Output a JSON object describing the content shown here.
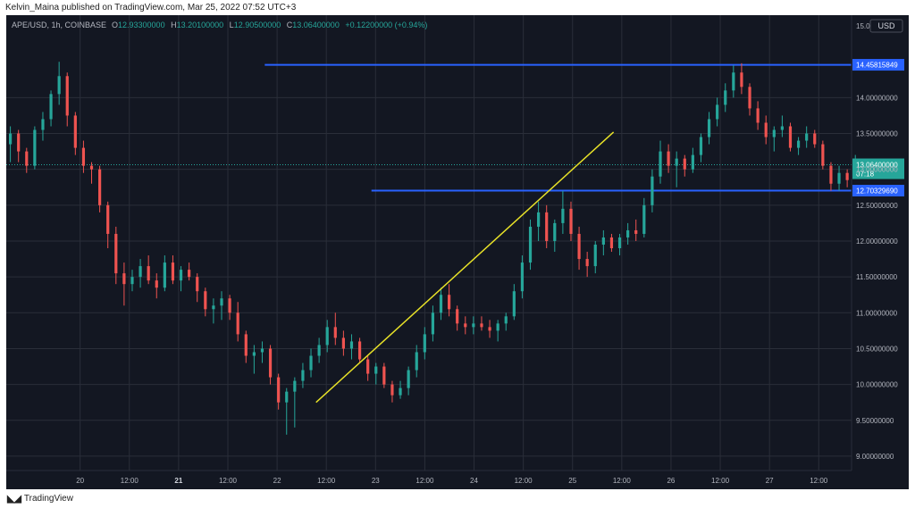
{
  "header": {
    "published_text": "Kelvin_Maina published on TradingView.com, Mar 25, 2022 07:52 UTC+3"
  },
  "footer": {
    "brand": "TradingView"
  },
  "symbol_info": {
    "symbol": "APE/USD, 1h, COINBASE",
    "o_label": "O",
    "o_value": "12.93300000",
    "h_label": "H",
    "h_value": "13.20100000",
    "l_label": "L",
    "l_value": "12.90500000",
    "c_label": "C",
    "c_value": "13.06400000",
    "change": "+0.12200000 (+0.94%)"
  },
  "colors": {
    "background": "#131722",
    "grid": "#2a2e39",
    "up": "#26a69a",
    "down": "#ef5350",
    "level_line": "#2962ff",
    "trend_line": "#e8e228",
    "axis_text": "#b2b5be"
  },
  "chart_data": {
    "type": "candlestick",
    "currency_label": "USD",
    "y_axis_top_label": "15.00000000",
    "ylim": [
      8.8,
      15.15
    ],
    "y_ticks": [
      "9.00000000",
      "9.50000000",
      "10.00000000",
      "10.50000000",
      "11.00000000",
      "11.50000000",
      "12.00000000",
      "12.50000000",
      "13.00000000",
      "13.50000000",
      "14.00000000"
    ],
    "y_tick_values": [
      9.0,
      9.5,
      10.0,
      10.5,
      11.0,
      11.5,
      12.0,
      12.5,
      13.0,
      13.5,
      14.0
    ],
    "x_ticks": [
      "20",
      "12:00",
      "21",
      "12:00",
      "22",
      "12:00",
      "23",
      "12:00",
      "24",
      "12:00",
      "25",
      "12:00",
      "26",
      "12:00",
      "27",
      "12:00"
    ],
    "x_tick_hours": [
      24,
      36,
      48,
      60,
      72,
      84,
      96,
      108,
      120,
      132,
      144,
      156,
      168,
      180,
      192,
      204
    ],
    "x_range_hours": [
      6,
      212
    ],
    "horizontal_levels": [
      {
        "label": "14.45815849",
        "value": 14.45815849,
        "from_hour": 69
      },
      {
        "label": "12.70329690",
        "value": 12.7032969,
        "from_hour": 95
      }
    ],
    "last_price": {
      "label": "13.06400000",
      "countdown": "07:18",
      "value": 13.064
    },
    "trend_line": {
      "from": [
        81.5,
        9.75
      ],
      "to": [
        154,
        13.52
      ]
    },
    "candles_h": [
      [
        13.35,
        13.6,
        13.1,
        13.5
      ],
      [
        13.5,
        13.55,
        13.1,
        13.25
      ],
      [
        13.25,
        13.3,
        12.95,
        13.05
      ],
      [
        13.05,
        13.6,
        13.0,
        13.55
      ],
      [
        13.55,
        13.8,
        13.4,
        13.7
      ],
      [
        13.7,
        14.1,
        13.6,
        14.05
      ],
      [
        14.05,
        14.5,
        13.9,
        14.3
      ],
      [
        14.3,
        14.35,
        13.6,
        13.75
      ],
      [
        13.75,
        13.8,
        13.2,
        13.3
      ],
      [
        13.3,
        13.4,
        12.95,
        13.05
      ],
      [
        13.05,
        13.1,
        12.8,
        13.0
      ],
      [
        13.0,
        13.05,
        12.4,
        12.5
      ],
      [
        12.5,
        12.55,
        11.9,
        12.1
      ],
      [
        12.1,
        12.2,
        11.4,
        11.55
      ],
      [
        11.55,
        11.7,
        11.1,
        11.4
      ],
      [
        11.4,
        11.6,
        11.3,
        11.5
      ],
      [
        11.5,
        11.75,
        11.35,
        11.65
      ],
      [
        11.65,
        11.8,
        11.4,
        11.45
      ],
      [
        11.45,
        11.55,
        11.2,
        11.35
      ],
      [
        11.35,
        11.8,
        11.3,
        11.7
      ],
      [
        11.7,
        11.8,
        11.4,
        11.45
      ],
      [
        11.45,
        11.65,
        11.3,
        11.6
      ],
      [
        11.6,
        11.7,
        11.45,
        11.5
      ],
      [
        11.5,
        11.55,
        11.15,
        11.3
      ],
      [
        11.3,
        11.35,
        10.95,
        11.05
      ],
      [
        11.05,
        11.2,
        10.85,
        11.1
      ],
      [
        11.1,
        11.3,
        10.9,
        11.2
      ],
      [
        11.2,
        11.25,
        10.9,
        11.0
      ],
      [
        11.0,
        11.15,
        10.6,
        10.7
      ],
      [
        10.7,
        10.75,
        10.3,
        10.4
      ],
      [
        10.4,
        10.55,
        10.15,
        10.45
      ],
      [
        10.45,
        10.6,
        10.3,
        10.5
      ],
      [
        10.5,
        10.55,
        10.0,
        10.1
      ],
      [
        10.1,
        10.15,
        9.65,
        9.75
      ],
      [
        9.75,
        9.95,
        9.3,
        9.9
      ],
      [
        9.9,
        10.1,
        9.4,
        10.05
      ],
      [
        10.05,
        10.3,
        9.95,
        10.2
      ],
      [
        10.2,
        10.5,
        10.1,
        10.4
      ],
      [
        10.4,
        10.65,
        10.3,
        10.55
      ],
      [
        10.55,
        10.9,
        10.45,
        10.8
      ],
      [
        10.8,
        11.0,
        10.55,
        10.65
      ],
      [
        10.65,
        10.75,
        10.4,
        10.5
      ],
      [
        10.5,
        10.7,
        10.35,
        10.6
      ],
      [
        10.6,
        10.65,
        10.3,
        10.35
      ],
      [
        10.35,
        10.4,
        10.05,
        10.15
      ],
      [
        10.15,
        10.3,
        10.0,
        10.25
      ],
      [
        10.25,
        10.3,
        9.95,
        10.0
      ],
      [
        10.0,
        10.05,
        9.75,
        9.85
      ],
      [
        9.85,
        10.05,
        9.8,
        9.95
      ],
      [
        9.95,
        10.25,
        9.85,
        10.2
      ],
      [
        10.2,
        10.55,
        10.1,
        10.45
      ],
      [
        10.45,
        10.8,
        10.35,
        10.7
      ],
      [
        10.7,
        11.1,
        10.6,
        11.0
      ],
      [
        11.0,
        11.35,
        10.9,
        11.25
      ],
      [
        11.25,
        11.4,
        10.95,
        11.05
      ],
      [
        11.05,
        11.1,
        10.75,
        10.85
      ],
      [
        10.85,
        10.95,
        10.7,
        10.8
      ],
      [
        10.8,
        10.95,
        10.7,
        10.85
      ],
      [
        10.85,
        10.95,
        10.75,
        10.8
      ],
      [
        10.8,
        10.9,
        10.65,
        10.75
      ],
      [
        10.75,
        10.9,
        10.6,
        10.85
      ],
      [
        10.85,
        11.0,
        10.75,
        10.95
      ],
      [
        10.95,
        11.4,
        10.9,
        11.3
      ],
      [
        11.3,
        11.8,
        11.2,
        11.7
      ],
      [
        11.7,
        12.3,
        11.6,
        12.2
      ],
      [
        12.2,
        12.55,
        12.0,
        12.4
      ],
      [
        12.4,
        12.5,
        11.9,
        12.0
      ],
      [
        12.0,
        12.3,
        11.85,
        12.25
      ],
      [
        12.25,
        12.7,
        12.1,
        12.45
      ],
      [
        12.45,
        12.55,
        12.0,
        12.1
      ],
      [
        12.1,
        12.2,
        11.6,
        11.75
      ],
      [
        11.75,
        11.85,
        11.5,
        11.65
      ],
      [
        11.65,
        12.0,
        11.55,
        11.95
      ],
      [
        11.95,
        12.15,
        11.8,
        12.05
      ],
      [
        12.05,
        12.1,
        11.85,
        11.9
      ],
      [
        11.9,
        12.1,
        11.8,
        12.05
      ],
      [
        12.05,
        12.25,
        11.95,
        12.15
      ],
      [
        12.15,
        12.3,
        12.0,
        12.1
      ],
      [
        12.1,
        12.6,
        12.05,
        12.5
      ],
      [
        12.5,
        13.0,
        12.4,
        12.9
      ],
      [
        12.9,
        13.4,
        12.8,
        13.25
      ],
      [
        13.25,
        13.35,
        12.95,
        13.05
      ],
      [
        13.05,
        13.25,
        12.75,
        13.15
      ],
      [
        13.15,
        13.2,
        12.9,
        13.0
      ],
      [
        13.0,
        13.3,
        12.95,
        13.2
      ],
      [
        13.2,
        13.5,
        13.1,
        13.45
      ],
      [
        13.45,
        13.8,
        13.35,
        13.7
      ],
      [
        13.7,
        14.0,
        13.6,
        13.9
      ],
      [
        13.9,
        14.2,
        13.8,
        14.1
      ],
      [
        14.1,
        14.45,
        14.0,
        14.35
      ],
      [
        14.35,
        14.48,
        14.05,
        14.15
      ],
      [
        14.15,
        14.2,
        13.75,
        13.85
      ],
      [
        13.85,
        13.95,
        13.55,
        13.65
      ],
      [
        13.65,
        13.75,
        13.35,
        13.45
      ],
      [
        13.45,
        13.6,
        13.25,
        13.55
      ],
      [
        13.55,
        13.75,
        13.45,
        13.6
      ],
      [
        13.6,
        13.65,
        13.25,
        13.3
      ],
      [
        13.3,
        13.45,
        13.2,
        13.4
      ],
      [
        13.4,
        13.6,
        13.3,
        13.5
      ],
      [
        13.5,
        13.55,
        13.3,
        13.35
      ],
      [
        13.35,
        13.4,
        13.0,
        13.05
      ],
      [
        13.05,
        13.1,
        12.7,
        12.8
      ],
      [
        12.8,
        13.05,
        12.7,
        12.95
      ],
      [
        12.95,
        13.0,
        12.75,
        12.85
      ],
      [
        12.933,
        13.201,
        12.905,
        13.064
      ]
    ]
  }
}
